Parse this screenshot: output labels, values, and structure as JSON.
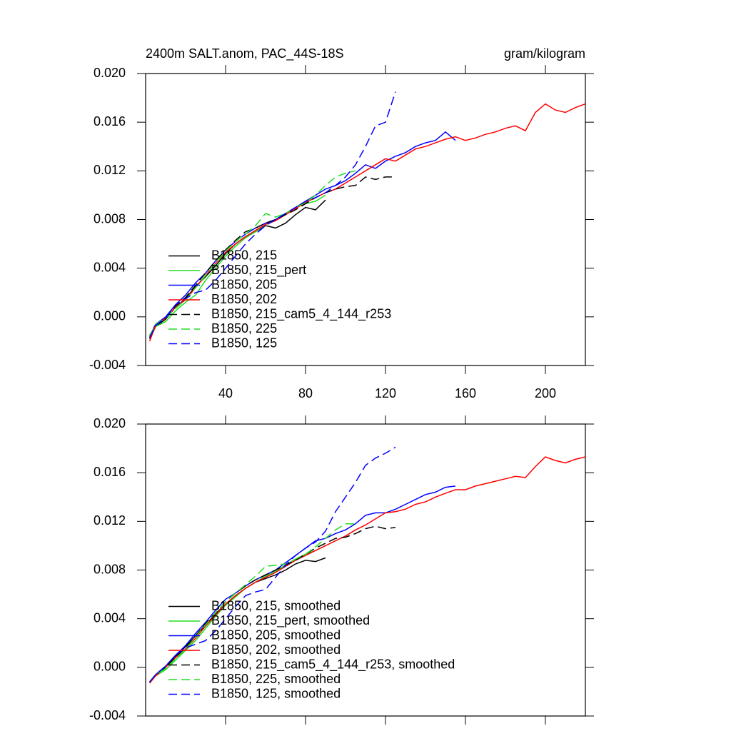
{
  "chart_data": [
    {
      "type": "line",
      "title": "2400m SALT.anom, PAC_44S-18S",
      "units": "gram/kilogram",
      "xlim": [
        0,
        220
      ],
      "ylim": [
        -0.004,
        0.02
      ],
      "xticks": [
        40,
        80,
        120,
        160,
        200
      ],
      "show_xtick_labels": true,
      "yticks": [
        {
          "value": 0.02,
          "label": "0.020"
        },
        0.016,
        0.012,
        0.008,
        0.004,
        {
          "value": 0,
          "label": "0.000"
        },
        -0.004
      ],
      "legend": "lower left",
      "x": [
        2,
        5,
        10,
        15,
        20,
        25,
        30,
        35,
        40,
        45,
        50,
        55,
        60,
        65,
        70,
        75,
        80,
        85,
        90,
        95,
        100,
        105,
        110,
        115,
        120,
        125,
        130,
        135,
        140,
        145,
        150,
        155,
        160,
        165,
        170,
        175,
        180,
        185,
        190,
        195,
        200,
        205,
        210,
        215,
        220
      ],
      "series": [
        {
          "name": "B1850, 215",
          "color": "#000000",
          "dashed": false,
          "values": [
            -0.0018,
            -0.0008,
            -0.0002,
            0.0008,
            0.0015,
            0.0025,
            0.0033,
            0.0042,
            0.0052,
            0.006,
            0.0066,
            0.007,
            0.0075,
            0.0073,
            0.0077,
            0.0084,
            0.009,
            0.0088,
            0.0096,
            null,
            null,
            null,
            null,
            null,
            null,
            null,
            null,
            null,
            null,
            null,
            null,
            null,
            null,
            null,
            null,
            null,
            null,
            null,
            null,
            null,
            null,
            null,
            null,
            null,
            null
          ]
        },
        {
          "name": "B1850, 215_pert",
          "color": "#22dd22",
          "dashed": false,
          "values": [
            -0.0015,
            -0.0008,
            -0.0004,
            0.0005,
            0.0012,
            0.0018,
            0.003,
            0.004,
            0.005,
            0.0058,
            0.0065,
            0.007,
            0.0076,
            0.008,
            0.0084,
            0.009,
            0.0093,
            0.0095,
            0.01,
            null,
            null,
            null,
            null,
            null,
            null,
            null,
            null,
            null,
            null,
            null,
            null,
            null,
            null,
            null,
            null,
            null,
            null,
            null,
            null,
            null,
            null,
            null,
            null,
            null,
            null
          ]
        },
        {
          "name": "B1850, 205",
          "color": "#0000ff",
          "dashed": false,
          "values": [
            -0.0016,
            -0.0006,
            0,
            0.001,
            0.0018,
            0.0028,
            0.0036,
            0.0046,
            0.0055,
            0.0062,
            0.0068,
            0.0073,
            0.0077,
            0.008,
            0.0085,
            0.009,
            0.0095,
            0.01,
            0.0105,
            0.0108,
            0.0112,
            0.0118,
            0.0125,
            0.0122,
            0.0128,
            0.0132,
            0.0135,
            0.014,
            0.0143,
            0.0145,
            0.0152,
            0.0145,
            null,
            null,
            null,
            null,
            null,
            null,
            null,
            null,
            null,
            null,
            null,
            null,
            null
          ]
        },
        {
          "name": "B1850, 202",
          "color": "#ff0000",
          "dashed": false,
          "values": [
            -0.002,
            -0.0007,
            -0.0001,
            0.0008,
            0.0014,
            0.0024,
            0.0034,
            0.0044,
            0.0053,
            0.006,
            0.0066,
            0.0071,
            0.0076,
            0.0079,
            0.0084,
            0.0089,
            0.0094,
            0.0098,
            0.0102,
            0.0105,
            0.011,
            0.0115,
            0.012,
            0.0125,
            0.013,
            0.0128,
            0.0133,
            0.0138,
            0.014,
            0.0143,
            0.0146,
            0.0148,
            0.0145,
            0.0147,
            0.015,
            0.0152,
            0.0155,
            0.0157,
            0.0153,
            0.0168,
            0.0175,
            0.017,
            0.0168,
            0.0172,
            0.0175
          ]
        },
        {
          "name": "B1850, 215_cam5_4_144_r253",
          "color": "#000000",
          "dashed": true,
          "values": [
            -0.0017,
            -0.0007,
            -0.0001,
            0.0009,
            0.0016,
            0.0026,
            0.0036,
            0.0046,
            0.0055,
            0.0063,
            0.007,
            0.0073,
            0.0077,
            0.008,
            0.0084,
            0.0088,
            0.0093,
            0.0098,
            0.0102,
            0.0105,
            0.0107,
            0.0108,
            0.0115,
            0.0113,
            0.0115,
            0.0115,
            null,
            null,
            null,
            null,
            null,
            null,
            null,
            null,
            null,
            null,
            null,
            null,
            null,
            null,
            null,
            null,
            null,
            null,
            null
          ]
        },
        {
          "name": "B1850, 225",
          "color": "#22dd22",
          "dashed": true,
          "values": [
            -0.0016,
            -0.0006,
            -0.0001,
            0.0007,
            0.0014,
            0.0024,
            0.0034,
            0.0044,
            0.0054,
            0.0062,
            0.0068,
            0.0075,
            0.0085,
            0.0082,
            0.0085,
            0.009,
            0.0094,
            0.01,
            0.0108,
            0.0115,
            0.0118,
            0.012,
            null,
            null,
            null,
            null,
            null,
            null,
            null,
            null,
            null,
            null,
            null,
            null,
            null,
            null,
            null,
            null,
            null,
            null,
            null,
            null,
            null,
            null,
            null
          ]
        },
        {
          "name": "B1850, 125",
          "color": "#0000ff",
          "dashed": true,
          "values": [
            -0.0017,
            -0.0007,
            -0.0001,
            0.001,
            0.0015,
            0.002,
            0.0022,
            0.003,
            0.004,
            0.005,
            0.006,
            0.0068,
            0.0075,
            0.008,
            0.0085,
            0.009,
            0.0095,
            0.0098,
            0.0102,
            0.0108,
            0.0115,
            0.0125,
            0.014,
            0.0157,
            0.016,
            0.0185,
            null,
            null,
            null,
            null,
            null,
            null,
            null,
            null,
            null,
            null,
            null,
            null,
            null,
            null,
            null,
            null,
            null,
            null,
            null
          ]
        }
      ]
    },
    {
      "type": "line",
      "xlim": [
        0,
        220
      ],
      "ylim": [
        -0.004,
        0.02
      ],
      "xticks": [
        40,
        80,
        120,
        160,
        200
      ],
      "show_xtick_labels": false,
      "yticks": [
        {
          "value": 0.02,
          "label": "0.020"
        },
        0.016,
        0.012,
        0.008,
        0.004,
        {
          "value": 0,
          "label": "0.000"
        },
        -0.004
      ],
      "legend": "lower left",
      "x": [
        2,
        5,
        10,
        15,
        20,
        25,
        30,
        35,
        40,
        45,
        50,
        55,
        60,
        65,
        70,
        75,
        80,
        85,
        90,
        95,
        100,
        105,
        110,
        115,
        120,
        125,
        130,
        135,
        140,
        145,
        150,
        155,
        160,
        165,
        170,
        175,
        180,
        185,
        190,
        195,
        200,
        205,
        210,
        215,
        220
      ],
      "series": [
        {
          "name": "B1850, 215, smoothed",
          "color": "#000000",
          "dashed": false,
          "values": [
            -0.0012,
            -0.0006,
            0,
            0.0009,
            0.0017,
            0.0026,
            0.0035,
            0.0044,
            0.0052,
            0.0059,
            0.0065,
            0.007,
            0.0073,
            0.0076,
            0.008,
            0.0085,
            0.0088,
            0.0087,
            0.009,
            null,
            null,
            null,
            null,
            null,
            null,
            null,
            null,
            null,
            null,
            null,
            null,
            null,
            null,
            null,
            null,
            null,
            null,
            null,
            null,
            null,
            null,
            null,
            null,
            null,
            null
          ]
        },
        {
          "name": "B1850, 215_pert, smoothed",
          "color": "#22dd22",
          "dashed": false,
          "values": [
            -0.0012,
            -0.0007,
            -0.0002,
            0.0006,
            0.0014,
            0.0022,
            0.0032,
            0.0042,
            0.0051,
            0.0058,
            0.0065,
            0.007,
            0.0075,
            0.0079,
            0.0084,
            0.0089,
            0.0093,
            0.0096,
            0.01,
            null,
            null,
            null,
            null,
            null,
            null,
            null,
            null,
            null,
            null,
            null,
            null,
            null,
            null,
            null,
            null,
            null,
            null,
            null,
            null,
            null,
            null,
            null,
            null,
            null,
            null
          ]
        },
        {
          "name": "B1850, 205, smoothed",
          "color": "#0000ff",
          "dashed": false,
          "values": [
            -0.0013,
            -0.0006,
            0.0001,
            0.001,
            0.0018,
            0.0028,
            0.0037,
            0.0047,
            0.0056,
            0.0061,
            0.0067,
            0.0072,
            0.0076,
            0.008,
            0.0086,
            0.0092,
            0.0098,
            0.0104,
            0.0106,
            0.011,
            0.0113,
            0.0118,
            0.0125,
            0.0127,
            0.0127,
            0.013,
            0.0134,
            0.0138,
            0.0142,
            0.0144,
            0.0148,
            0.0149,
            null,
            null,
            null,
            null,
            null,
            null,
            null,
            null,
            null,
            null,
            null,
            null,
            null
          ]
        },
        {
          "name": "B1850, 202, smoothed",
          "color": "#ff0000",
          "dashed": false,
          "values": [
            -0.0013,
            -0.0007,
            0,
            0.0008,
            0.0015,
            0.0024,
            0.0034,
            0.0043,
            0.0052,
            0.0059,
            0.0065,
            0.007,
            0.0074,
            0.0078,
            0.0083,
            0.0088,
            0.0092,
            0.0096,
            0.01,
            0.0104,
            0.0108,
            0.0113,
            0.0117,
            0.0122,
            0.0127,
            0.0128,
            0.013,
            0.0134,
            0.0136,
            0.014,
            0.0143,
            0.0146,
            0.0146,
            0.0149,
            0.0151,
            0.0153,
            0.0155,
            0.0157,
            0.0156,
            0.0165,
            0.0173,
            0.017,
            0.0168,
            0.0171,
            0.0173
          ]
        },
        {
          "name": "B1850, 215_cam5_4_144_r253, smoothed",
          "color": "#000000",
          "dashed": true,
          "values": [
            -0.0012,
            -0.0006,
            0,
            0.0009,
            0.0016,
            0.0026,
            0.0036,
            0.0045,
            0.0054,
            0.0061,
            0.0067,
            0.0072,
            0.0076,
            0.008,
            0.0084,
            0.0088,
            0.0093,
            0.0098,
            0.0102,
            0.0106,
            0.0107,
            0.011,
            0.0114,
            0.0116,
            0.0114,
            0.0115,
            null,
            null,
            null,
            null,
            null,
            null,
            null,
            null,
            null,
            null,
            null,
            null,
            null,
            null,
            null,
            null,
            null,
            null,
            null
          ]
        },
        {
          "name": "B1850, 225, smoothed",
          "color": "#22dd22",
          "dashed": true,
          "values": [
            -0.0012,
            -0.0006,
            -0.0001,
            0.0007,
            0.0015,
            0.0025,
            0.0035,
            0.0045,
            0.0054,
            0.0061,
            0.0068,
            0.0075,
            0.0083,
            0.0084,
            0.0085,
            0.0089,
            0.0093,
            0.0099,
            0.0106,
            0.0113,
            0.0118,
            0.0118,
            null,
            null,
            null,
            null,
            null,
            null,
            null,
            null,
            null,
            null,
            null,
            null,
            null,
            null,
            null,
            null,
            null,
            null,
            null,
            null,
            null,
            null,
            null
          ]
        },
        {
          "name": "B1850, 125, smoothed",
          "color": "#0000ff",
          "dashed": true,
          "values": [
            -0.0012,
            -0.0006,
            0.0001,
            0.001,
            0.0016,
            0.0019,
            0.0022,
            0.003,
            0.004,
            0.005,
            0.0059,
            0.0062,
            0.0064,
            0.0074,
            0.0084,
            0.0092,
            0.0098,
            0.0103,
            0.0112,
            0.0128,
            0.014,
            0.0152,
            0.0166,
            0.0172,
            0.0176,
            0.0181,
            null,
            null,
            null,
            null,
            null,
            null,
            null,
            null,
            null,
            null,
            null,
            null,
            null,
            null,
            null,
            null,
            null,
            null,
            null
          ]
        }
      ]
    }
  ]
}
